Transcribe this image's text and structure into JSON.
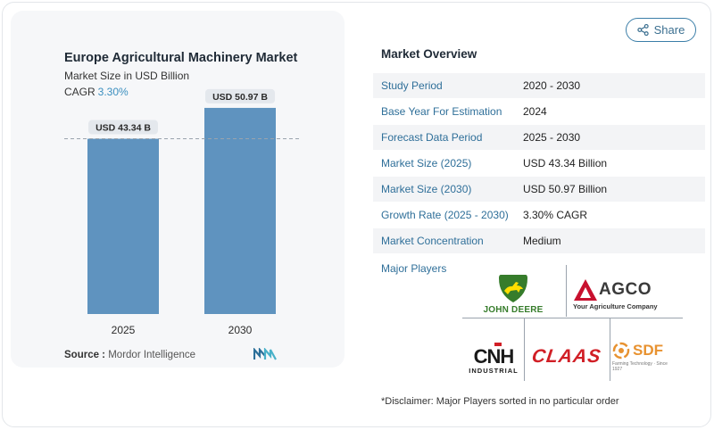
{
  "chart_data": {
    "type": "bar",
    "title": "Europe Agricultural Machinery Market",
    "subtitle": "Market Size in USD Billion",
    "cagr_label": "CAGR",
    "cagr_value": "3.30%",
    "categories": [
      "2025",
      "2030"
    ],
    "values": [
      43.34,
      50.97
    ],
    "data_labels": [
      "USD 43.34 B",
      "USD 50.97 B"
    ],
    "ylim": [
      0,
      60
    ],
    "bar_color": "#5f93bf",
    "reference_line": 43.34,
    "grid": false,
    "legend": "none"
  },
  "source": {
    "label": "Source :",
    "value": "Mordor Intelligence"
  },
  "share": {
    "label": "Share",
    "icon": "share-icon"
  },
  "overview": {
    "title": "Market Overview",
    "rows": [
      {
        "key": "Study Period",
        "value": "2020 - 2030"
      },
      {
        "key": "Base Year For Estimation",
        "value": "2024"
      },
      {
        "key": "Forecast Data Period",
        "value": "2025 - 2030"
      },
      {
        "key": "Market Size (2025)",
        "value": "USD 43.34 Billion"
      },
      {
        "key": "Market Size (2030)",
        "value": "USD 50.97 Billion"
      },
      {
        "key": "Growth Rate (2025 - 2030)",
        "value": "3.30% CAGR"
      },
      {
        "key": "Market Concentration",
        "value": "Medium"
      }
    ]
  },
  "players": {
    "label": "Major Players",
    "logos": {
      "john_deere": "JOHN DEERE",
      "agco": "AGCO",
      "agco_tagline": "Your Agriculture Company",
      "cnh": "CNH",
      "cnh_sub": "INDUSTRIAL",
      "claas": "CLAAS",
      "sdf": "SDF",
      "sdf_tagline": "Farming Technology · Since 1927"
    }
  },
  "disclaimer": "*Disclaimer: Major Players sorted in no particular order",
  "colors": {
    "accent": "#3b8fbf",
    "link": "#2f6f99",
    "bar": "#5f93bf",
    "claas_red": "#d11f26",
    "deere_green": "#367c2b",
    "deere_yellow": "#ffde00",
    "agco_red": "#c8102e",
    "sdf_orange": "#e89230"
  }
}
